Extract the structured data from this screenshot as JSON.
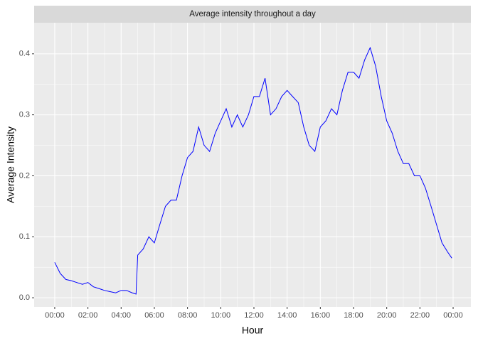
{
  "chart_data": {
    "type": "line",
    "title": "Average intensity throughout a day",
    "x_label": "Hour",
    "y_label": "Average Intensity",
    "x": [
      0,
      0.33,
      0.67,
      1,
      1.33,
      1.67,
      2,
      2.33,
      2.67,
      3,
      3.33,
      3.67,
      4,
      4.33,
      4.67,
      4.9,
      5,
      5.33,
      5.67,
      6,
      6.33,
      6.67,
      7,
      7.33,
      7.67,
      8,
      8.33,
      8.67,
      9,
      9.33,
      9.67,
      10,
      10.33,
      10.67,
      11,
      11.33,
      11.67,
      12,
      12.33,
      12.67,
      13,
      13.33,
      13.67,
      14,
      14.33,
      14.67,
      15,
      15.33,
      15.67,
      16,
      16.33,
      16.67,
      17,
      17.33,
      17.67,
      18,
      18.33,
      18.67,
      19,
      19.33,
      19.67,
      20,
      20.33,
      20.67,
      21,
      21.33,
      21.67,
      22,
      22.33,
      22.67,
      23,
      23.33,
      23.67,
      23.92
    ],
    "series": [
      {
        "name": "Average Intensity",
        "color": "#0000ff",
        "values": [
          0.058,
          0.04,
          0.03,
          0.028,
          0.025,
          0.022,
          0.025,
          0.018,
          0.015,
          0.012,
          0.01,
          0.008,
          0.012,
          0.012,
          0.008,
          0.006,
          0.07,
          0.08,
          0.1,
          0.09,
          0.12,
          0.15,
          0.16,
          0.16,
          0.2,
          0.23,
          0.24,
          0.28,
          0.25,
          0.24,
          0.27,
          0.29,
          0.31,
          0.28,
          0.3,
          0.28,
          0.3,
          0.33,
          0.33,
          0.36,
          0.3,
          0.31,
          0.33,
          0.34,
          0.33,
          0.32,
          0.28,
          0.25,
          0.24,
          0.28,
          0.29,
          0.31,
          0.3,
          0.34,
          0.37,
          0.37,
          0.36,
          0.39,
          0.41,
          0.38,
          0.33,
          0.29,
          0.27,
          0.24,
          0.22,
          0.22,
          0.2,
          0.2,
          0.18,
          0.15,
          0.12,
          0.09,
          0.075,
          0.065
        ]
      }
    ],
    "xlim": [
      -1.24,
      25.07
    ],
    "xticks": [
      {
        "value": 0,
        "label": "00:00"
      },
      {
        "value": 2,
        "label": "02:00"
      },
      {
        "value": 4,
        "label": "04:00"
      },
      {
        "value": 6,
        "label": "06:00"
      },
      {
        "value": 8,
        "label": "08:00"
      },
      {
        "value": 10,
        "label": "10:00"
      },
      {
        "value": 12,
        "label": "12:00"
      },
      {
        "value": 14,
        "label": "14:00"
      },
      {
        "value": 16,
        "label": "16:00"
      },
      {
        "value": 18,
        "label": "18:00"
      },
      {
        "value": 20,
        "label": "20:00"
      },
      {
        "value": 22,
        "label": "22:00"
      },
      {
        "value": 24,
        "label": "00:00"
      }
    ],
    "ylim": [
      -0.015,
      0.451
    ],
    "yticks": [
      {
        "value": 0,
        "label": "0.0"
      },
      0.1,
      0.2,
      0.3,
      0.4
    ],
    "grid": true
  }
}
